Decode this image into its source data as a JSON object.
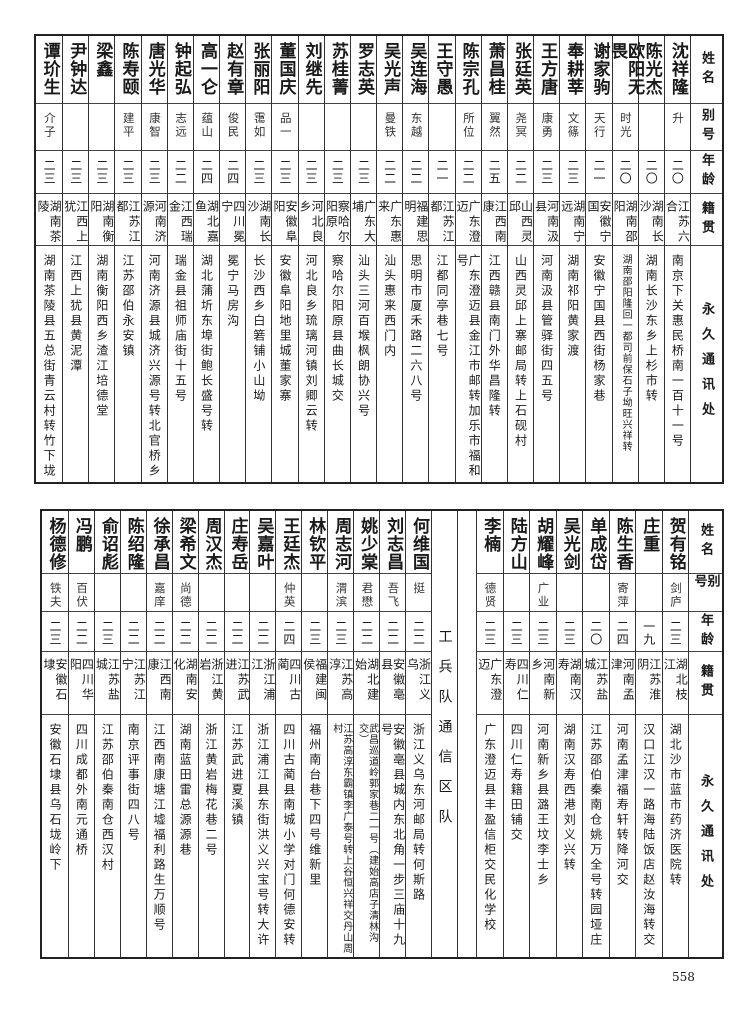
{
  "headers": {
    "name": "姓名",
    "alias": "别号",
    "age": "年龄",
    "origin": "籍贯",
    "address": "永久通讯处"
  },
  "top_table": [
    {
      "name": "沈祥隆",
      "alias": "升",
      "age": "二〇",
      "origin": "江苏六合",
      "address": "南京下关惠民桥南一百十一号"
    },
    {
      "name": "陈光杰",
      "alias": "",
      "age": "二〇",
      "origin": "湖南长沙",
      "address": "湖南长沙东乡上杉市转"
    },
    {
      "name": "欧阳无畏",
      "alias": "时光",
      "age": "二〇",
      "origin": "湖南邵阳",
      "address": "湖南邵阳隆回一都司前保石子坳旺兴祥转"
    },
    {
      "name": "谢家驹",
      "alias": "天行",
      "age": "二一",
      "origin": "安徽宁国",
      "address": "安徽宁国县西街杨家巷"
    },
    {
      "name": "奉耕莘",
      "alias": "文篠",
      "age": "二三",
      "origin": "湖南宁远",
      "address": "湖南祁阳黄家渡"
    },
    {
      "name": "王方唐",
      "alias": "康勇",
      "age": "二三",
      "origin": "河南汲县",
      "address": "河南汲县管驿街四五号"
    },
    {
      "name": "张廷英",
      "alias": "尧冥",
      "age": "二二",
      "origin": "山西灵邱",
      "address": "山西灵邱上寨邮局转上石砚村"
    },
    {
      "name": "萧昌桂",
      "alias": "翼然",
      "age": "二五",
      "origin": "江西南康",
      "address": "江西赣县南门外华昌隆转"
    },
    {
      "name": "陈宗孔",
      "alias": "所位",
      "age": "二二",
      "origin": "广东澄迈",
      "address": "广东澄迈县金江市邮转加乐市福和号"
    },
    {
      "name": "王守愚",
      "alias": "",
      "age": "二一",
      "origin": "江苏江都",
      "address": "江都同亭巷七号"
    },
    {
      "name": "吴连海",
      "alias": "东越",
      "age": "二二",
      "origin": "福建思明",
      "address": "思明市厦禾路二六八号"
    },
    {
      "name": "吴光声",
      "alias": "曼铁",
      "age": "二二",
      "origin": "广东惠来",
      "address": "汕头惠来西门内"
    },
    {
      "name": "罗志英",
      "alias": "",
      "age": "二三",
      "origin": "广东大埔",
      "address": "汕头三河百堠枫朗协兴号"
    },
    {
      "name": "苏桂菁",
      "alias": "",
      "age": "二三",
      "origin": "察哈尔阳原",
      "address": "察哈尔阳原县曲长城交"
    },
    {
      "name": "刘继先",
      "alias": "",
      "age": "二三",
      "origin": "河北良乡",
      "address": "河北良乡琉璃河镇刘卿云转"
    },
    {
      "name": "董国庆",
      "alias": "品一",
      "age": "二三",
      "origin": "安徽阜阳",
      "address": "安徽阜阳地里城董家寨"
    },
    {
      "name": "张丽阳",
      "alias": "霭如",
      "age": "二三",
      "origin": "湖南长沙",
      "address": "长沙西乡白箬铺小山坳"
    },
    {
      "name": "赵有章",
      "alias": "俊民",
      "age": "二四",
      "origin": "四川冕宁",
      "address": "冕宁马房沟"
    },
    {
      "name": "高一仑",
      "alias": "蕴山",
      "age": "二四",
      "origin": "湖北嘉鱼",
      "address": "湖北蒲圻东埠街鲍长盛号转"
    },
    {
      "name": "钟起弘",
      "alias": "志远",
      "age": "二二",
      "origin": "江西瑞金",
      "address": "瑞金县祖师庙街十五号"
    },
    {
      "name": "唐光华",
      "alias": "康智",
      "age": "二三",
      "origin": "河南济源",
      "address": "河南济源县城济兴源号转北官桥乡"
    },
    {
      "name": "陈寿颐",
      "alias": "建平",
      "age": "二三",
      "origin": "江苏江都",
      "address": "江苏邵伯永安镇"
    },
    {
      "name": "梁鑫",
      "alias": "",
      "age": "二三",
      "origin": "湖南衡阳",
      "address": "湖南衡阳西乡渣江培德堂"
    },
    {
      "name": "尹钟达",
      "alias": "",
      "age": "二三",
      "origin": "江西上犹",
      "address": "江西上犹县黄泥潭"
    },
    {
      "name": "谭玠生",
      "alias": "介子",
      "age": "二三",
      "origin": "湖南茶陵",
      "address": "湖南茶陵县五总街青云村转竹下垅"
    }
  ],
  "bottom_table_right": [
    {
      "name": "贺有铭",
      "alias": "剑庐",
      "age": "二三",
      "origin": "湖北枝江",
      "address": "湖北沙市蓝市药济医院转"
    },
    {
      "name": "庄重",
      "alias": "",
      "age": "一九",
      "origin": "江苏淮阴",
      "address": "汉口江汉一路海陆饭店赵汝海转交"
    },
    {
      "name": "陈生香",
      "alias": "寄萍",
      "age": "二四",
      "origin": "河南孟津",
      "address": "河南孟津福寿轩转降河交"
    },
    {
      "name": "单成岱",
      "alias": "",
      "age": "二〇",
      "origin": "江苏盐城",
      "address": "江苏邵伯秦南仓姚万全号转园垭庄"
    },
    {
      "name": "吴光剑",
      "alias": "",
      "age": "二三",
      "origin": "湖南汉寿",
      "address": "湖南汉寿西港刘义兴转"
    },
    {
      "name": "胡耀峰",
      "alias": "广业",
      "age": "二三",
      "origin": "河南新乡",
      "address": "河南新乡县潞王坟李士乡"
    },
    {
      "name": "陆方山",
      "alias": "",
      "age": "二三",
      "origin": "四川仁寿",
      "address": "四川仁寿籍田铺交"
    },
    {
      "name": "李楠",
      "alias": "德贤",
      "age": "二三",
      "origin": "广东澄迈",
      "address": "广东澄迈县丰盈信柜交民化学校"
    }
  ],
  "section_title": "工兵队通信区队",
  "bottom_table_left": [
    {
      "name": "何维国",
      "alias": "挺",
      "age": "二二",
      "origin": "浙江义乌",
      "address": "浙江义乌东河邮局转何斯路"
    },
    {
      "name": "刘志昌",
      "alias": "吾飞",
      "age": "二二",
      "origin": "安徽亳县",
      "address": "安徽亳县城内东北角一步三庙十九号"
    },
    {
      "name": "姚少棠",
      "alias": "君懋",
      "age": "二二",
      "origin": "湖北建始",
      "address": "武昌巡道岭郭家巷二一号（建始高店子清林沟交）"
    },
    {
      "name": "周志河",
      "alias": "渭滨",
      "age": "二三",
      "origin": "江苏高淳",
      "address": "江苏高淳东霸镇李广泰号转上谷恒兴祥交丹山周村"
    },
    {
      "name": "林钦平",
      "alias": "",
      "age": "二三",
      "origin": "福建闽侯",
      "address": "福州南台巷下四号维新里"
    },
    {
      "name": "王廷杰",
      "alias": "仲英",
      "age": "二四",
      "origin": "四川古蔺",
      "address": "四川古蔺县南城小学对门何德安转"
    },
    {
      "name": "吴嘉叶",
      "alias": "",
      "age": "二二",
      "origin": "浙江浦江",
      "address": "浙江浦江县东街洪义兴宝号转大许"
    },
    {
      "name": "庄寿岳",
      "alias": "",
      "age": "二二",
      "origin": "江苏武进",
      "address": "江苏武进夏溪镇"
    },
    {
      "name": "周汉杰",
      "alias": "",
      "age": "二二",
      "origin": "浙江黄岩",
      "address": "浙江黄岩梅花巷二号"
    },
    {
      "name": "梁希文",
      "alias": "尚德",
      "age": "二二",
      "origin": "湖南安化",
      "address": "湖南蓝田雷总源源巷"
    },
    {
      "name": "徐承昌",
      "alias": "嘉庠",
      "age": "二二",
      "origin": "江西南康",
      "address": "江西南康塘江墟福利路生万顺号"
    },
    {
      "name": "陈绍隆",
      "alias": "",
      "age": "二二",
      "origin": "江苏江宁",
      "address": "南京评事街四八号"
    },
    {
      "name": "俞诏彪",
      "alias": "",
      "age": "二三",
      "origin": "江苏盐城",
      "address": "江苏邵伯秦南仓西汉村"
    },
    {
      "name": "冯鹏",
      "alias": "百伏",
      "age": "二二",
      "origin": "四川华阳",
      "address": "四川成都外南元通桥"
    },
    {
      "name": "杨德修",
      "alias": "铁夫",
      "age": "二三",
      "origin": "安徽石埭",
      "address": "安徽石埭县乌石垅岭下"
    }
  ],
  "page_number": "558"
}
